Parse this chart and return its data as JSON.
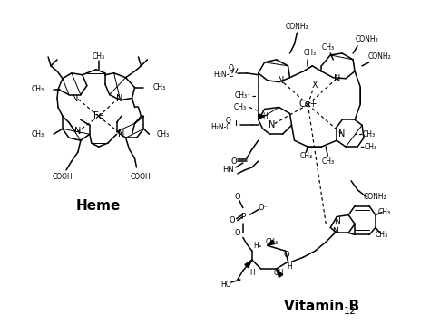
{
  "background_color": "#ffffff",
  "heme_label": "Heme",
  "vitb12_label": "Vitamin B",
  "vitb12_subscript": "12",
  "label_fontsize": 11,
  "figure_width": 4.74,
  "figure_height": 3.58,
  "dpi": 100
}
